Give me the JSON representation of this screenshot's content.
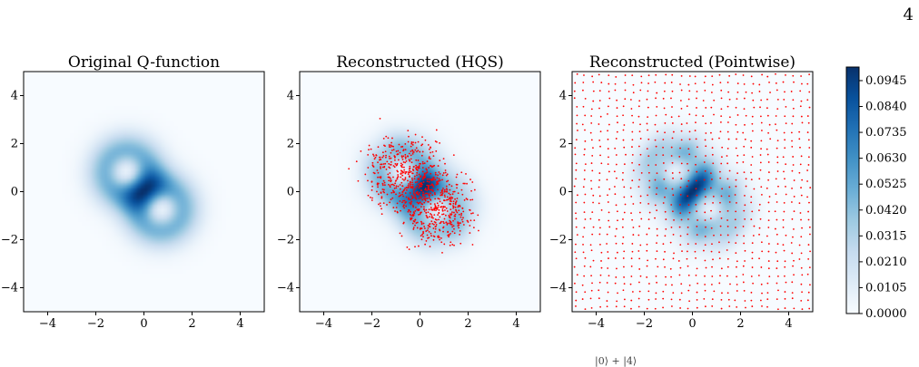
{
  "page": {
    "page_number": "4",
    "bottom_fragment": "|0⟩ + |4⟩"
  },
  "chart_data": {
    "type": "heatmap",
    "colormap": "Blues",
    "panels": [
      {
        "title": "Original Q-function",
        "xlim": [
          -5,
          5
        ],
        "ylim": [
          -5,
          5
        ],
        "xticks": [
          -4,
          -2,
          0,
          2,
          4
        ],
        "yticks": [
          -4,
          -2,
          0,
          2,
          4
        ],
        "xtick_labels": [
          "−4",
          "−2",
          "0",
          "2",
          "4"
        ],
        "ytick_labels": [
          "−4",
          "−2",
          "0",
          "2",
          "4"
        ],
        "sample_points": "none"
      },
      {
        "title": "Reconstructed (HQS)",
        "xlim": [
          -5,
          5
        ],
        "ylim": [
          -5,
          5
        ],
        "xticks": [
          -4,
          -2,
          0,
          2,
          4
        ],
        "yticks": [
          -4,
          -2,
          0,
          2,
          4
        ],
        "xtick_labels": [
          "−4",
          "−2",
          "0",
          "2",
          "4"
        ],
        "ytick_labels": [
          "−4",
          "−2",
          "0",
          "2",
          "4"
        ],
        "sample_points": "scattered",
        "point_color": "#ff0000"
      },
      {
        "title": "Reconstructed (Pointwise)",
        "xlim": [
          -5,
          5
        ],
        "ylim": [
          -5,
          5
        ],
        "xticks": [
          -4,
          -2,
          0,
          2,
          4
        ],
        "yticks": [
          -4,
          -2,
          0,
          2,
          4
        ],
        "xtick_labels": [
          "−4",
          "−2",
          "0",
          "2",
          "4"
        ],
        "ytick_labels": [
          "−4",
          "−2",
          "0",
          "2",
          "4"
        ],
        "sample_points": "grid",
        "point_color": "#ff0000"
      }
    ],
    "colorbar": {
      "range": [
        0.0,
        0.1
      ],
      "ticks": [
        0.0,
        0.0105,
        0.021,
        0.0315,
        0.042,
        0.0525,
        0.063,
        0.0735,
        0.084,
        0.0945
      ],
      "tick_labels": [
        "0.0000",
        "0.0105",
        "0.0210",
        "0.0315",
        "0.0420",
        "0.0525",
        "0.0630",
        "0.0735",
        "0.0840",
        "0.0945"
      ]
    }
  }
}
